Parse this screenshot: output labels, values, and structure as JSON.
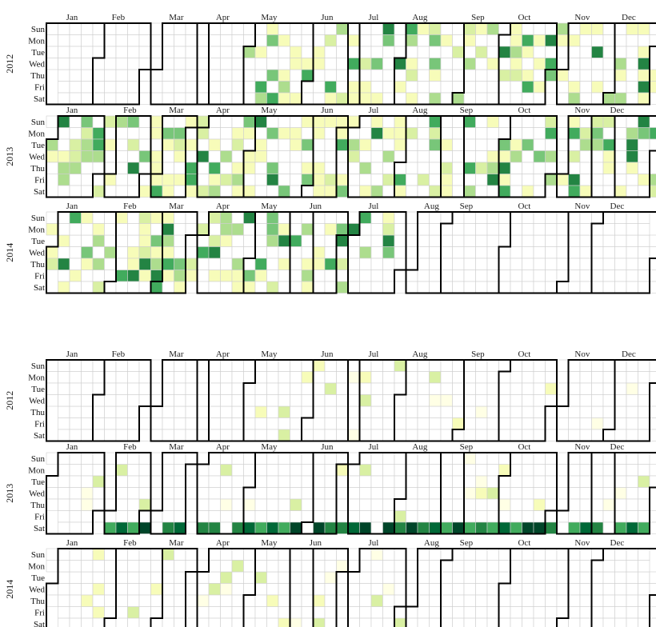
{
  "chart_data": [
    {
      "type": "heatmap",
      "title": "",
      "years": [
        "2012",
        "2013",
        "2014"
      ],
      "month_labels": [
        "Jan",
        "Feb",
        "Mar",
        "Apr",
        "May",
        "Jun",
        "Jul",
        "Aug",
        "Sep",
        "Oct",
        "Nov",
        "Dec"
      ],
      "day_labels": [
        "Sun",
        "Mon",
        "Tue",
        "Wed",
        "Thu",
        "Fri",
        "Sat"
      ],
      "color_scale": [
        "#ffffe5",
        "#f7fcb9",
        "#d9f0a3",
        "#addd8e",
        "#78c679",
        "#41ab5d",
        "#238443",
        "#006837",
        "#004529"
      ],
      "data_start": "2012-05-01",
      "data_end": "2014-07-31",
      "grid": true,
      "legend": "none"
    },
    {
      "type": "heatmap",
      "title": "",
      "years": [
        "2012",
        "2013",
        "2014"
      ],
      "month_labels": [
        "Jan",
        "Feb",
        "Mar",
        "Apr",
        "May",
        "Jun",
        "Jul",
        "Aug",
        "Sep",
        "Oct",
        "Nov",
        "Dec"
      ],
      "day_labels": [
        "Sun",
        "Mon",
        "Tue",
        "Wed",
        "Thu",
        "Fri",
        "Sat"
      ],
      "color_scale": [
        "#ffffe5",
        "#f7fcb9",
        "#d9f0a3",
        "#addd8e",
        "#78c679",
        "#41ab5d",
        "#238443",
        "#006837",
        "#004529"
      ],
      "data_start": "2012-05-01",
      "data_end": "2014-07-31",
      "grid": true,
      "legend": "none"
    }
  ]
}
